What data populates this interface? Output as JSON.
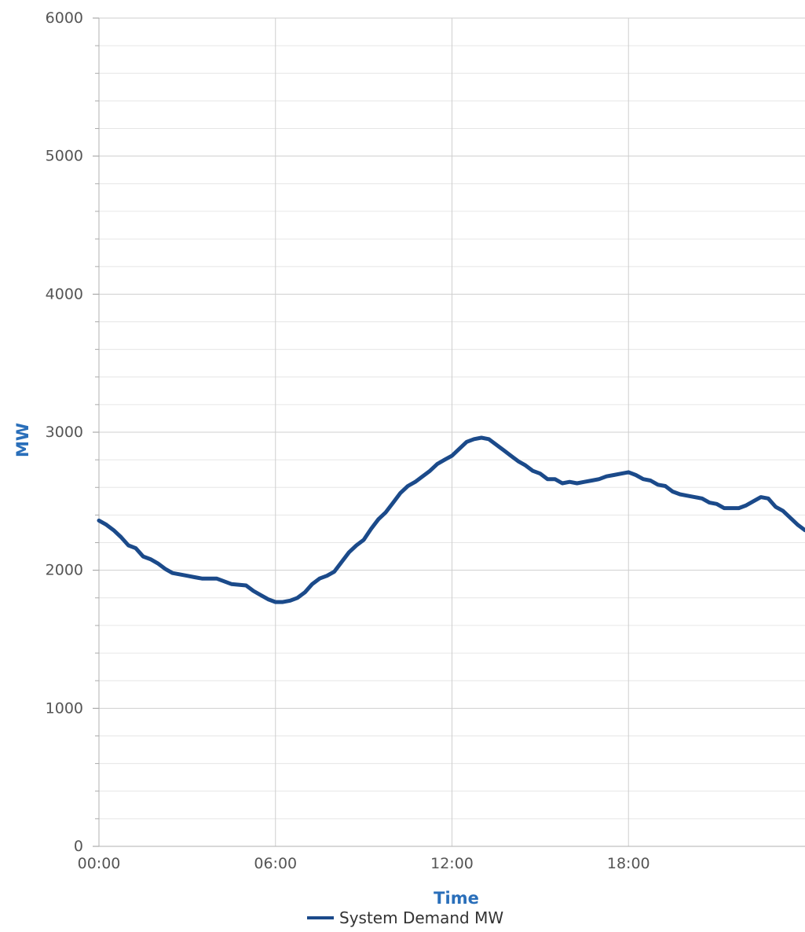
{
  "chart_data": {
    "type": "line",
    "xlabel": "Time",
    "ylabel": "MW",
    "ylim": [
      0,
      6000
    ],
    "y_ticks": [
      0,
      1000,
      2000,
      3000,
      4000,
      5000,
      6000
    ],
    "y_minor_step": 200,
    "x_range_hours": [
      0,
      24
    ],
    "x_ticks": [
      {
        "hour": 0,
        "label": "00:00"
      },
      {
        "hour": 6,
        "label": "06:00"
      },
      {
        "hour": 12,
        "label": "12:00"
      },
      {
        "hour": 18,
        "label": "18:00"
      }
    ],
    "grid": true,
    "legend_position": "bottom-center",
    "series": [
      {
        "name": "System Demand MW",
        "color": "#1b4a8a",
        "points": [
          [
            0.0,
            2360
          ],
          [
            0.25,
            2330
          ],
          [
            0.5,
            2290
          ],
          [
            0.75,
            2240
          ],
          [
            1.0,
            2180
          ],
          [
            1.25,
            2160
          ],
          [
            1.5,
            2100
          ],
          [
            1.75,
            2080
          ],
          [
            2.0,
            2050
          ],
          [
            2.25,
            2010
          ],
          [
            2.5,
            1980
          ],
          [
            3.0,
            1960
          ],
          [
            3.25,
            1950
          ],
          [
            3.5,
            1940
          ],
          [
            3.75,
            1940
          ],
          [
            4.0,
            1940
          ],
          [
            4.5,
            1900
          ],
          [
            5.0,
            1890
          ],
          [
            5.25,
            1850
          ],
          [
            5.5,
            1820
          ],
          [
            5.75,
            1790
          ],
          [
            6.0,
            1770
          ],
          [
            6.25,
            1770
          ],
          [
            6.5,
            1780
          ],
          [
            6.75,
            1800
          ],
          [
            7.0,
            1840
          ],
          [
            7.25,
            1900
          ],
          [
            7.5,
            1940
          ],
          [
            7.75,
            1960
          ],
          [
            8.0,
            1990
          ],
          [
            8.25,
            2060
          ],
          [
            8.5,
            2130
          ],
          [
            8.75,
            2180
          ],
          [
            9.0,
            2220
          ],
          [
            9.25,
            2300
          ],
          [
            9.5,
            2370
          ],
          [
            9.75,
            2420
          ],
          [
            10.0,
            2490
          ],
          [
            10.25,
            2560
          ],
          [
            10.5,
            2610
          ],
          [
            10.75,
            2640
          ],
          [
            11.0,
            2680
          ],
          [
            11.25,
            2720
          ],
          [
            11.5,
            2770
          ],
          [
            11.75,
            2800
          ],
          [
            12.0,
            2830
          ],
          [
            12.25,
            2880
          ],
          [
            12.5,
            2930
          ],
          [
            12.75,
            2950
          ],
          [
            13.0,
            2960
          ],
          [
            13.25,
            2950
          ],
          [
            13.5,
            2910
          ],
          [
            13.75,
            2870
          ],
          [
            14.0,
            2830
          ],
          [
            14.25,
            2790
          ],
          [
            14.5,
            2760
          ],
          [
            14.75,
            2720
          ],
          [
            15.0,
            2700
          ],
          [
            15.25,
            2660
          ],
          [
            15.5,
            2660
          ],
          [
            15.75,
            2630
          ],
          [
            16.0,
            2640
          ],
          [
            16.25,
            2630
          ],
          [
            16.5,
            2640
          ],
          [
            16.75,
            2650
          ],
          [
            17.0,
            2660
          ],
          [
            17.25,
            2680
          ],
          [
            17.5,
            2690
          ],
          [
            17.75,
            2700
          ],
          [
            18.0,
            2710
          ],
          [
            18.25,
            2690
          ],
          [
            18.5,
            2660
          ],
          [
            18.75,
            2650
          ],
          [
            19.0,
            2620
          ],
          [
            19.25,
            2610
          ],
          [
            19.5,
            2570
          ],
          [
            19.75,
            2550
          ],
          [
            20.0,
            2540
          ],
          [
            20.25,
            2530
          ],
          [
            20.5,
            2520
          ],
          [
            20.75,
            2490
          ],
          [
            21.0,
            2480
          ],
          [
            21.25,
            2450
          ],
          [
            21.5,
            2450
          ],
          [
            21.75,
            2450
          ],
          [
            22.0,
            2470
          ],
          [
            22.25,
            2500
          ],
          [
            22.5,
            2530
          ],
          [
            22.75,
            2520
          ],
          [
            23.0,
            2460
          ],
          [
            23.25,
            2430
          ],
          [
            23.5,
            2380
          ],
          [
            23.75,
            2330
          ],
          [
            24.0,
            2290
          ]
        ]
      }
    ]
  }
}
